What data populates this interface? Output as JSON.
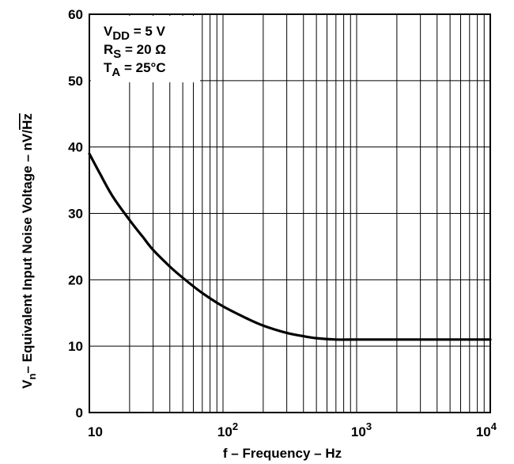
{
  "chart_data": {
    "type": "line",
    "title": "",
    "xlabel": "f – Frequency – Hz",
    "ylabel": "Vn– Equivalent Input Noise Voltage – nV/√Hz",
    "ylabel_parts": {
      "main": "V",
      "sub": "n",
      "rest": "– Equivalent Input Noise Voltage – nV/",
      "radical": "Hz"
    },
    "x_scale": "log",
    "xlim": [
      10,
      10000
    ],
    "ylim": [
      0,
      60
    ],
    "x_ticks": [
      {
        "value": 10,
        "base": "10",
        "exp": ""
      },
      {
        "value": 100,
        "base": "10",
        "exp": "2"
      },
      {
        "value": 1000,
        "base": "10",
        "exp": "3"
      },
      {
        "value": 10000,
        "base": "10",
        "exp": "4"
      }
    ],
    "y_ticks": [
      0,
      10,
      20,
      30,
      40,
      50,
      60
    ],
    "grid": true,
    "annotations": [
      {
        "main": "V",
        "sub": "DD",
        "rest": " = 5 V"
      },
      {
        "main": "R",
        "sub": "S",
        "rest": " = 20 Ω"
      },
      {
        "main": "T",
        "sub": "A",
        "rest": " = 25°C"
      }
    ],
    "series": [
      {
        "x": [
          10,
          12,
          15,
          20,
          25,
          30,
          40,
          50,
          70,
          100,
          150,
          200,
          300,
          400,
          500,
          700,
          1000,
          2000,
          5000,
          10000
        ],
        "y": [
          39,
          36,
          32.5,
          29,
          26.5,
          24.5,
          22,
          20.3,
          18,
          16,
          14.2,
          13.1,
          12,
          11.5,
          11.2,
          11,
          11,
          11,
          11,
          11
        ]
      }
    ]
  }
}
